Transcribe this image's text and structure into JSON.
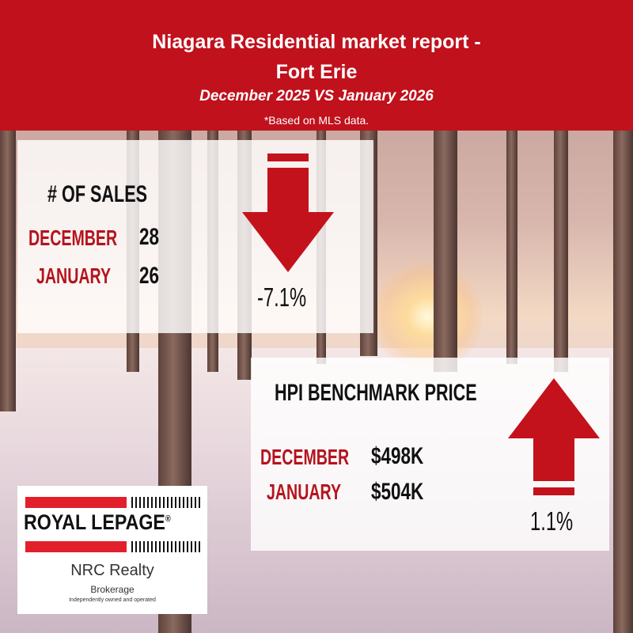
{
  "header": {
    "title_line1": "Niagara Residential market report -",
    "title_line2": "Fort Erie",
    "subtitle": "December 2025 VS January 2026",
    "note": "*Based on MLS data."
  },
  "sales": {
    "heading": "# OF SALES",
    "rows": [
      {
        "label": "DECEMBER",
        "value": "28"
      },
      {
        "label": "JANUARY",
        "value": "26"
      }
    ],
    "change": "-7.1%",
    "direction": "down"
  },
  "hpi": {
    "heading": "HPI BENCHMARK PRICE",
    "rows": [
      {
        "label": "DECEMBER",
        "value": "$498K"
      },
      {
        "label": "JANUARY",
        "value": "$504K"
      }
    ],
    "change": "1.1%",
    "direction": "up"
  },
  "logo": {
    "brand": "ROYAL LEPAGE",
    "registered": "®",
    "office": "NRC Realty",
    "type": "Brokerage",
    "tagline": "Independently owned and operated"
  },
  "colors": {
    "accent_red": "#c0111c",
    "label_red": "#b4141d",
    "arrow_red": "#c3121c",
    "logo_red": "#e2202b"
  }
}
